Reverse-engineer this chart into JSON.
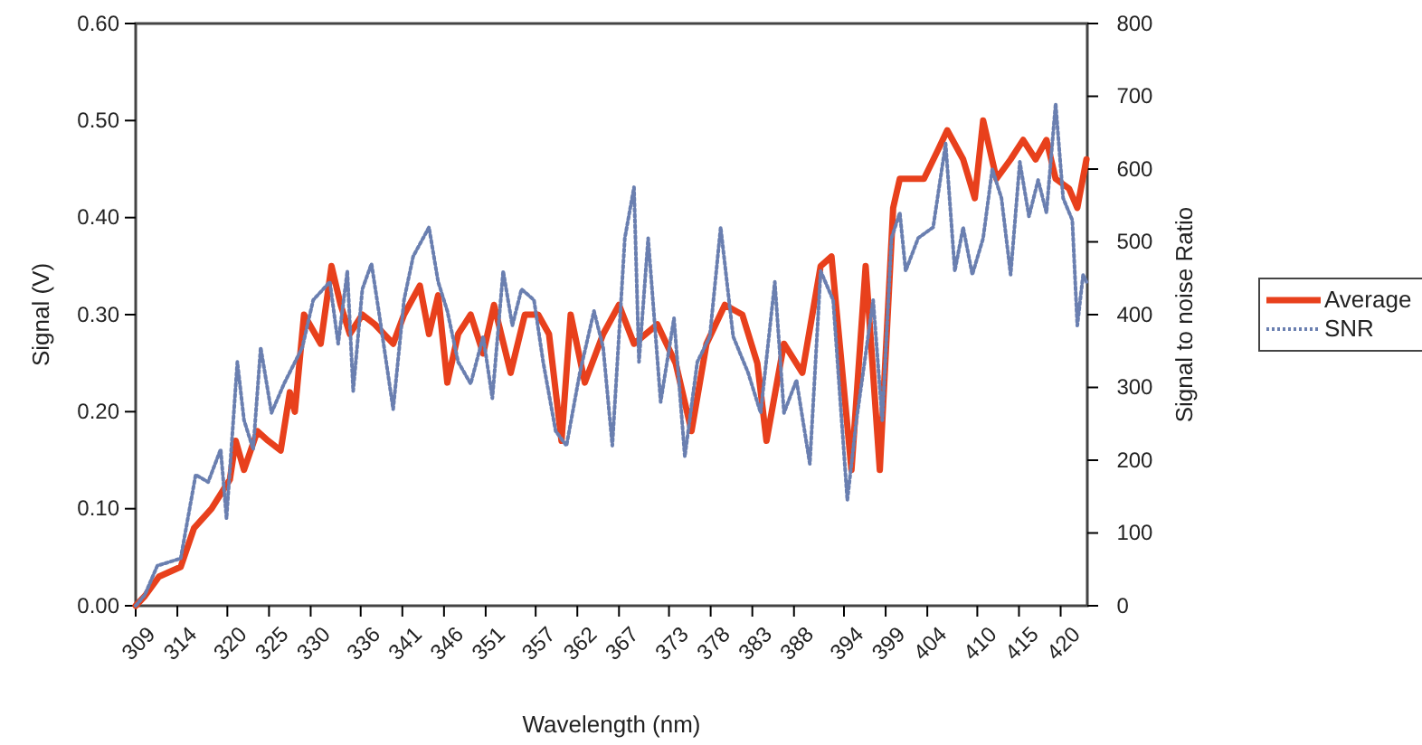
{
  "chart_data": {
    "type": "line",
    "xlabel": "Wavelength (nm)",
    "ylabel": "Signal (V)",
    "y2label": "Signal to noise Ratio",
    "xlim": [
      309,
      423.2
    ],
    "xticks": [
      309,
      314,
      320,
      325,
      330,
      336,
      341,
      346,
      351,
      357,
      362,
      367,
      373,
      378,
      383,
      388,
      394,
      399,
      404,
      410,
      415,
      420
    ],
    "ylim": [
      0,
      0.6
    ],
    "yticks": [
      {
        "value": 0,
        "label": "0.00"
      },
      {
        "value": 0.1,
        "label": "0.10"
      },
      {
        "value": 0.2,
        "label": "0.20"
      },
      {
        "value": 0.3,
        "label": "0.30"
      },
      {
        "value": 0.4,
        "label": "0.40"
      },
      {
        "value": 0.5,
        "label": "0.50"
      },
      {
        "value": 0.6,
        "label": "0.60"
      }
    ],
    "y2lim": [
      0,
      800
    ],
    "y2ticks": [
      0,
      100,
      200,
      300,
      400,
      500,
      600,
      700,
      800
    ],
    "legend": "right",
    "grid": false,
    "series": [
      {
        "name": "Average",
        "color": "#e8401c",
        "line_style": "solid",
        "x": [
          309,
          310.1,
          311.8,
          314.4,
          316,
          318.1,
          320.3,
          321,
          322,
          323.6,
          324.9,
          326.4,
          327.5,
          328.1,
          329.2,
          331.2,
          332.5,
          333.6,
          334.7,
          336.2,
          337.7,
          339.9,
          341.2,
          343.1,
          344.2,
          345.3,
          346.4,
          347.7,
          349.2,
          350.7,
          352,
          354,
          355.7,
          357.3,
          358.6,
          360.1,
          361.2,
          362.9,
          365.1,
          367,
          368.8,
          371.6,
          373.8,
          375.7,
          377.5,
          379.7,
          381.8,
          383.6,
          384.7,
          386.8,
          389,
          391.2,
          392.5,
          394.9,
          396.6,
          398.3,
          399.9,
          400.7,
          403.6,
          405.3,
          406.4,
          408.3,
          409.7,
          410.7,
          412.3,
          414,
          415.5,
          417,
          418.3,
          419.4,
          421,
          422,
          423.1
        ],
        "values": [
          0,
          0.01,
          0.03,
          0.04,
          0.08,
          0.1,
          0.13,
          0.17,
          0.14,
          0.18,
          0.17,
          0.16,
          0.22,
          0.2,
          0.3,
          0.27,
          0.35,
          0.31,
          0.28,
          0.3,
          0.29,
          0.27,
          0.3,
          0.33,
          0.28,
          0.32,
          0.23,
          0.28,
          0.3,
          0.26,
          0.31,
          0.24,
          0.3,
          0.3,
          0.28,
          0.17,
          0.3,
          0.23,
          0.28,
          0.31,
          0.27,
          0.29,
          0.25,
          0.18,
          0.27,
          0.31,
          0.3,
          0.25,
          0.17,
          0.27,
          0.24,
          0.35,
          0.36,
          0.14,
          0.35,
          0.14,
          0.41,
          0.44,
          0.44,
          0.47,
          0.49,
          0.46,
          0.42,
          0.5,
          0.44,
          0.46,
          0.48,
          0.46,
          0.48,
          0.44,
          0.43,
          0.41,
          0.46
        ]
      },
      {
        "name": "SNR",
        "color": "#6a7fb0",
        "line_style": "dotted",
        "axis": "y2",
        "x": [
          309,
          310.1,
          311.6,
          314.4,
          316.2,
          317.7,
          319.2,
          319.9,
          321.2,
          322,
          323.1,
          324,
          325.3,
          326.8,
          329,
          330.3,
          332.3,
          333.3,
          334.4,
          335.1,
          336.2,
          337.3,
          338.3,
          339.9,
          341.2,
          342.3,
          344.2,
          345.3,
          346.4,
          347.7,
          349.2,
          350.7,
          351.8,
          353.1,
          354.2,
          355.3,
          356.8,
          357.9,
          359.4,
          360.7,
          362.3,
          364,
          365.1,
          366.2,
          367.7,
          368.8,
          369.4,
          370.5,
          372,
          373.6,
          374.9,
          376.4,
          377.9,
          379.2,
          380.7,
          382.5,
          384,
          385.7,
          386.8,
          388.3,
          389.9,
          391.2,
          392.7,
          394.4,
          395.5,
          397.5,
          398.6,
          399.7,
          400.7,
          401.4,
          402.9,
          404.7,
          406.2,
          407.3,
          408.3,
          409.4,
          410.7,
          411.8,
          412.9,
          414,
          415.1,
          416.2,
          417.3,
          418.3,
          419.4,
          420.3,
          421.4,
          422,
          422.7,
          423.1
        ],
        "values": [
          0,
          15,
          55,
          65,
          180,
          170,
          215,
          120,
          335,
          255,
          215,
          355,
          265,
          305,
          355,
          420,
          445,
          360,
          460,
          295,
          435,
          470,
          395,
          270,
          420,
          480,
          520,
          445,
          405,
          335,
          305,
          370,
          285,
          460,
          385,
          435,
          420,
          335,
          240,
          220,
          320,
          405,
          355,
          220,
          505,
          575,
          335,
          505,
          280,
          395,
          205,
          335,
          370,
          520,
          370,
          320,
          265,
          445,
          265,
          310,
          195,
          460,
          420,
          145,
          255,
          420,
          255,
          505,
          540,
          460,
          505,
          520,
          635,
          460,
          520,
          455,
          505,
          600,
          560,
          455,
          610,
          535,
          585,
          540,
          690,
          560,
          530,
          385,
          455,
          445
        ]
      }
    ]
  }
}
